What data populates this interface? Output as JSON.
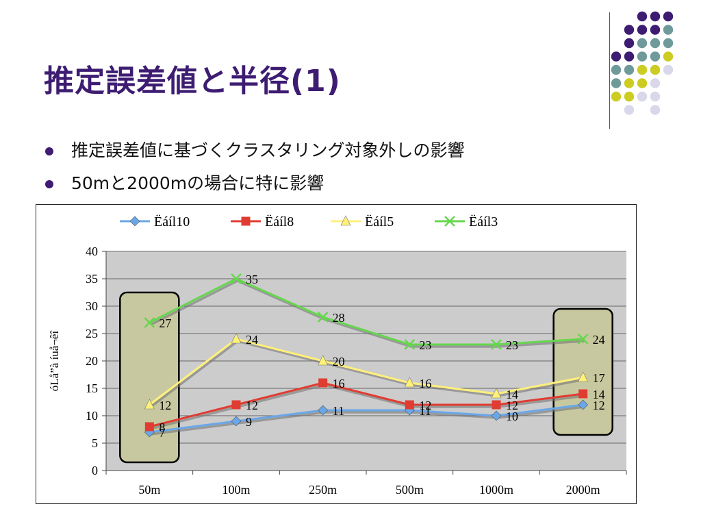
{
  "slide": {
    "title": "推定誤差値と半径(1)",
    "bullets": [
      "推定誤差値に基づくクラスタリング対象外しの影響",
      "50mと2000mの場合に特に影響"
    ]
  },
  "colors": {
    "purple": "#3d1c72",
    "teal": "#6e9a9a",
    "chartreuse": "#cccc22",
    "lavender": "#d8d8ea",
    "plot_bg": "#cccccc",
    "highlight_box": "#c8c8a0"
  },
  "chart_data": {
    "type": "line",
    "categories": [
      "50m",
      "100m",
      "250m",
      "500m",
      "1000m",
      "2000m"
    ],
    "ylabel": "óLå”à íuå¬êî",
    "ylim": [
      0,
      40
    ],
    "yticks": [
      0,
      5,
      10,
      15,
      20,
      25,
      30,
      35,
      40
    ],
    "grid": true,
    "legend_position": "top",
    "series": [
      {
        "name": "Ëáíl10",
        "color": "#6aa7e8",
        "marker": "diamond",
        "values": [
          7,
          9,
          11,
          11,
          10,
          12
        ],
        "labels": [
          "7",
          "9",
          "11",
          "11",
          "10",
          "12"
        ]
      },
      {
        "name": "Ëáíl8",
        "color": "#e03c31",
        "marker": "square",
        "values": [
          8,
          12,
          16,
          12,
          12,
          14
        ],
        "labels": [
          "8",
          "12",
          "16",
          "12",
          "12",
          "14"
        ]
      },
      {
        "name": "Ëáíl5",
        "color": "#fff07a",
        "marker": "triangle",
        "values": [
          12,
          24,
          20,
          16,
          14,
          17
        ],
        "labels": [
          "12",
          "24",
          "20",
          "16",
          "14",
          "17"
        ]
      },
      {
        "name": "Ëáíl3",
        "color": "#66d64e",
        "marker": "x",
        "values": [
          27,
          35,
          28,
          23,
          23,
          24
        ],
        "labels": [
          "27",
          "35",
          "28",
          "23",
          "23",
          "24"
        ]
      }
    ],
    "highlighted_categories": [
      "50m",
      "2000m"
    ]
  }
}
